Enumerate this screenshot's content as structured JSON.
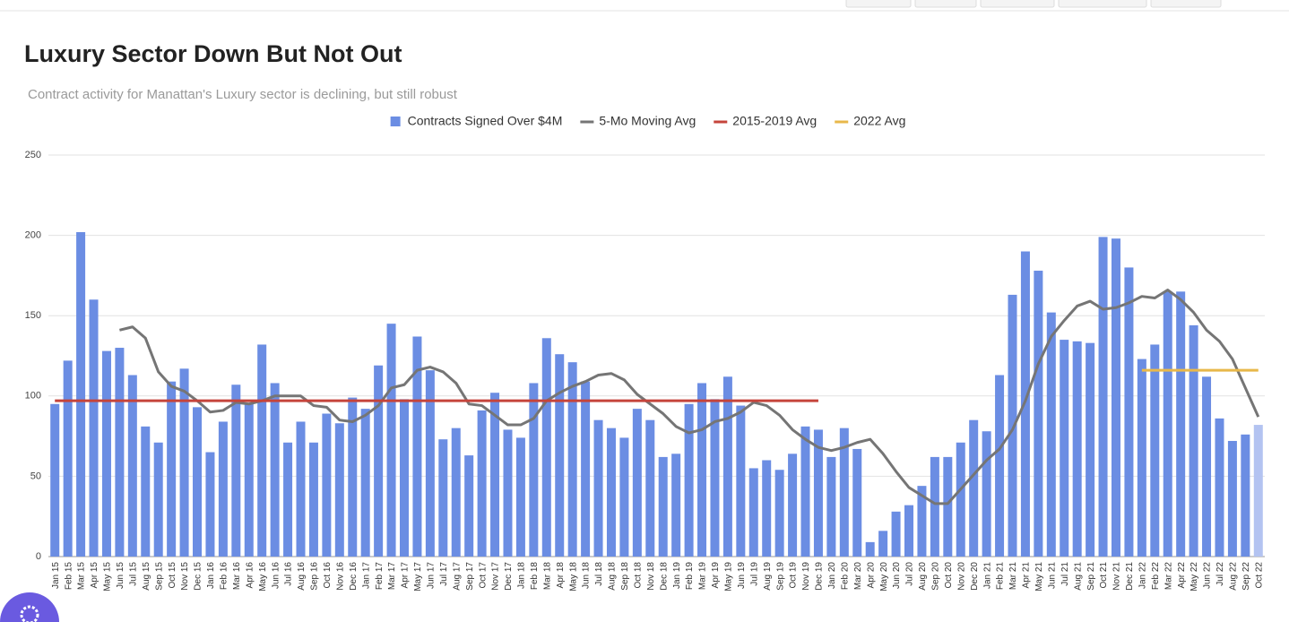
{
  "chart_data": {
    "type": "bar",
    "title": "Luxury Sector Down But Not Out",
    "subtitle": "Contract activity for Manattan's Luxury sector is declining, but still robust",
    "categories": [
      "Jan 15",
      "Feb 15",
      "Mar 15",
      "Apr 15",
      "May 15",
      "Jun 15",
      "Jul 15",
      "Aug 15",
      "Sep 15",
      "Oct 15",
      "Nov 15",
      "Dec 15",
      "Jan 16",
      "Feb 16",
      "Mar 16",
      "Apr 16",
      "May 16",
      "Jun 16",
      "Jul 16",
      "Aug 16",
      "Sep 16",
      "Oct 16",
      "Nov 16",
      "Dec 16",
      "Jan 17",
      "Feb 17",
      "Mar 17",
      "Apr 17",
      "May 17",
      "Jun 17",
      "Jul 17",
      "Aug 17",
      "Sep 17",
      "Oct 17",
      "Nov 17",
      "Dec 17",
      "Jan 18",
      "Feb 18",
      "Mar 18",
      "Apr 18",
      "May 18",
      "Jun 18",
      "Jul 18",
      "Aug 18",
      "Sep 18",
      "Oct 18",
      "Nov 18",
      "Dec 18",
      "Jan 19",
      "Feb 19",
      "Mar 19",
      "Apr 19",
      "May 19",
      "Jun 19",
      "Jul 19",
      "Aug 19",
      "Sep 19",
      "Oct 19",
      "Nov 19",
      "Dec 19",
      "Jan 20",
      "Feb 20",
      "Mar 20",
      "Apr 20",
      "May 20",
      "Jun 20",
      "Jul 20",
      "Aug 20",
      "Sep 20",
      "Oct 20",
      "Nov 20",
      "Dec 20",
      "Jan 21",
      "Feb 21",
      "Mar 21",
      "Apr 21",
      "May 21",
      "Jun 21",
      "Jul 21",
      "Aug 21",
      "Sep 21",
      "Oct 21",
      "Nov 21",
      "Dec 21",
      "Jan 22",
      "Feb 22",
      "Mar 22",
      "Apr 22",
      "May 22",
      "Jun 22",
      "Jul 22",
      "Aug 22",
      "Sep 22",
      "Oct 22"
    ],
    "series": [
      {
        "name": "Contracts Signed Over $4M",
        "type": "bar",
        "color": "#6b8de3",
        "point_colors": {
          "93": "#b3c3f1"
        },
        "values": [
          95,
          122,
          202,
          160,
          128,
          130,
          113,
          81,
          71,
          109,
          117,
          93,
          65,
          84,
          107,
          95,
          132,
          108,
          71,
          84,
          71,
          89,
          83,
          99,
          92,
          119,
          145,
          98,
          137,
          116,
          73,
          80,
          63,
          91,
          102,
          79,
          74,
          108,
          136,
          126,
          121,
          109,
          85,
          80,
          74,
          92,
          85,
          62,
          64,
          95,
          108,
          98,
          112,
          94,
          55,
          60,
          54,
          64,
          81,
          79,
          62,
          80,
          67,
          9,
          16,
          28,
          32,
          44,
          62,
          62,
          71,
          85,
          78,
          113,
          163,
          190,
          178,
          152,
          135,
          134,
          133,
          199,
          198,
          180,
          123,
          132,
          165,
          165,
          144,
          112,
          86,
          72,
          76,
          82
        ]
      },
      {
        "name": "5-Mo Moving Avg",
        "type": "line",
        "color": "#757575",
        "values": [
          null,
          null,
          null,
          null,
          null,
          141,
          143,
          136,
          115,
          106,
          103,
          97,
          90,
          91,
          96,
          95,
          97,
          100,
          100,
          100,
          94,
          93,
          85,
          84,
          88,
          94,
          105,
          107,
          116,
          118,
          115,
          108,
          95,
          94,
          88,
          82,
          82,
          86,
          97,
          102,
          106,
          109,
          113,
          114,
          110,
          101,
          95,
          89,
          81,
          77,
          79,
          84,
          86,
          90,
          96,
          94,
          88,
          79,
          73,
          68,
          66,
          68,
          71,
          73,
          64,
          53,
          43,
          38,
          33,
          33,
          42,
          51,
          60,
          67,
          79,
          97,
          120,
          137,
          147,
          156,
          159,
          154,
          155,
          158,
          162,
          161,
          166,
          160,
          152,
          141,
          134,
          123,
          105,
          87
        ]
      },
      {
        "name": "2015-2019 Avg",
        "type": "line",
        "color": "#c5443b",
        "values": [
          97,
          97,
          97,
          97,
          97,
          97,
          97,
          97,
          97,
          97,
          97,
          97,
          97,
          97,
          97,
          97,
          97,
          97,
          97,
          97,
          97,
          97,
          97,
          97,
          97,
          97,
          97,
          97,
          97,
          97,
          97,
          97,
          97,
          97,
          97,
          97,
          97,
          97,
          97,
          97,
          97,
          97,
          97,
          97,
          97,
          97,
          97,
          97,
          97,
          97,
          97,
          97,
          97,
          97,
          97,
          97,
          97,
          97,
          97,
          97,
          null,
          null,
          null,
          null,
          null,
          null,
          null,
          null,
          null,
          null,
          null,
          null,
          null,
          null,
          null,
          null,
          null,
          null,
          null,
          null,
          null,
          null,
          null,
          null,
          null,
          null,
          null,
          null,
          null,
          null,
          null,
          null,
          null,
          null
        ]
      },
      {
        "name": "2022 Avg",
        "type": "line",
        "color": "#e8b84a",
        "values": [
          null,
          null,
          null,
          null,
          null,
          null,
          null,
          null,
          null,
          null,
          null,
          null,
          null,
          null,
          null,
          null,
          null,
          null,
          null,
          null,
          null,
          null,
          null,
          null,
          null,
          null,
          null,
          null,
          null,
          null,
          null,
          null,
          null,
          null,
          null,
          null,
          null,
          null,
          null,
          null,
          null,
          null,
          null,
          null,
          null,
          null,
          null,
          null,
          null,
          null,
          null,
          null,
          null,
          null,
          null,
          null,
          null,
          null,
          null,
          null,
          null,
          null,
          null,
          null,
          null,
          null,
          null,
          null,
          null,
          null,
          null,
          null,
          null,
          null,
          null,
          null,
          null,
          null,
          null,
          null,
          null,
          null,
          null,
          null,
          116,
          116,
          116,
          116,
          116,
          116,
          116,
          116,
          116,
          116
        ]
      }
    ],
    "ylim": [
      0,
      250
    ],
    "yticks": [
      0,
      50,
      100,
      150,
      200,
      250
    ],
    "grid": true,
    "legend": "top"
  }
}
